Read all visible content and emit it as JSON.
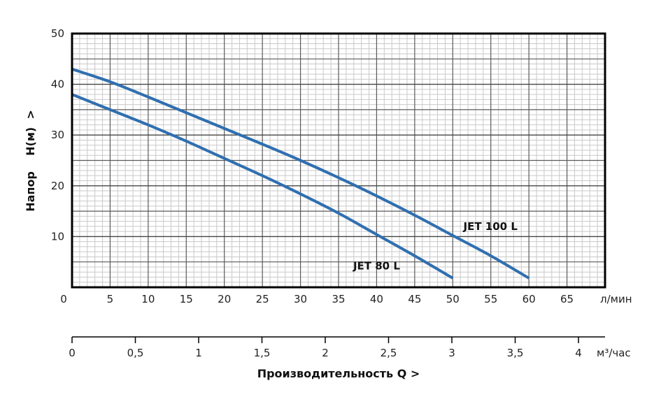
{
  "chart_data": {
    "type": "line",
    "ylabel_parts": [
      "Напор",
      "H(м)",
      ">"
    ],
    "xlabel": "Производительность Q  >",
    "x_unit_primary": "л/мин",
    "x_unit_secondary": "м³/час",
    "xlim": [
      0,
      70
    ],
    "ylim": [
      0,
      50
    ],
    "x_ticks": [
      0,
      5,
      10,
      15,
      20,
      25,
      30,
      35,
      40,
      45,
      50,
      55,
      60,
      65
    ],
    "y_ticks": [
      10,
      20,
      30,
      40,
      50
    ],
    "secondary_ticks": [
      {
        "value": 0,
        "label": "0"
      },
      {
        "value": 0.5,
        "label": "0,5"
      },
      {
        "value": 1,
        "label": "1"
      },
      {
        "value": 1.5,
        "label": "1,5"
      },
      {
        "value": 2,
        "label": "2"
      },
      {
        "value": 2.5,
        "label": "2,5"
      },
      {
        "value": 3,
        "label": "3"
      },
      {
        "value": 3.5,
        "label": "3,5"
      },
      {
        "value": 4,
        "label": "4"
      }
    ],
    "grid": true,
    "line_color": "#2f6fb0",
    "series": [
      {
        "name": "JET 80 L",
        "x": [
          0,
          5,
          10,
          15,
          20,
          25,
          30,
          35,
          40,
          45,
          50
        ],
        "y": [
          38,
          35,
          32,
          28.8,
          25.4,
          22,
          18.4,
          14.6,
          10.4,
          6.2,
          1.8
        ]
      },
      {
        "name": "JET 100 L",
        "x": [
          0,
          5,
          10,
          15,
          20,
          25,
          30,
          35,
          40,
          45,
          50,
          55,
          60
        ],
        "y": [
          43,
          40.5,
          37.5,
          34.4,
          31.3,
          28.2,
          25,
          21.6,
          18,
          14.2,
          10.2,
          6.2,
          1.8
        ]
      }
    ]
  }
}
